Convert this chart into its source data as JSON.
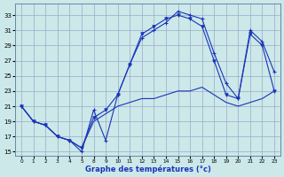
{
  "xlabel": "Graphe des températures (°c)",
  "bg_color": "#cce8e8",
  "line_color": "#1a35b8",
  "grid_color": "#99aacc",
  "ylim": [
    14.5,
    34.5
  ],
  "yticks": [
    15,
    17,
    19,
    21,
    23,
    25,
    27,
    29,
    31,
    33
  ],
  "hour_labels": [
    "0",
    "1",
    "2",
    "3",
    "4",
    "5",
    "8",
    "9",
    "10",
    "11",
    "12",
    "13",
    "14",
    "15",
    "16",
    "17",
    "18",
    "19",
    "20",
    "21",
    "22",
    "23"
  ],
  "series1_y": [
    21,
    19,
    18.5,
    17,
    16.5,
    15,
    20.5,
    16.5,
    22.5,
    26.5,
    30,
    31,
    32,
    33.5,
    33,
    32.5,
    28,
    24,
    22,
    31,
    29.5,
    25.5
  ],
  "series2_y": [
    21,
    19,
    18.5,
    17,
    16.5,
    15.5,
    19.5,
    20.5,
    22.5,
    26.5,
    30.5,
    31.5,
    32.5,
    33,
    32.5,
    31.5,
    27,
    22.5,
    22,
    30.5,
    29,
    23
  ],
  "series3_y": [
    21,
    19,
    18.5,
    17,
    16.5,
    15.5,
    19,
    20,
    21,
    21.5,
    22,
    22,
    22.5,
    23,
    23,
    23.5,
    22.5,
    21.5,
    21,
    21.5,
    22,
    23
  ]
}
